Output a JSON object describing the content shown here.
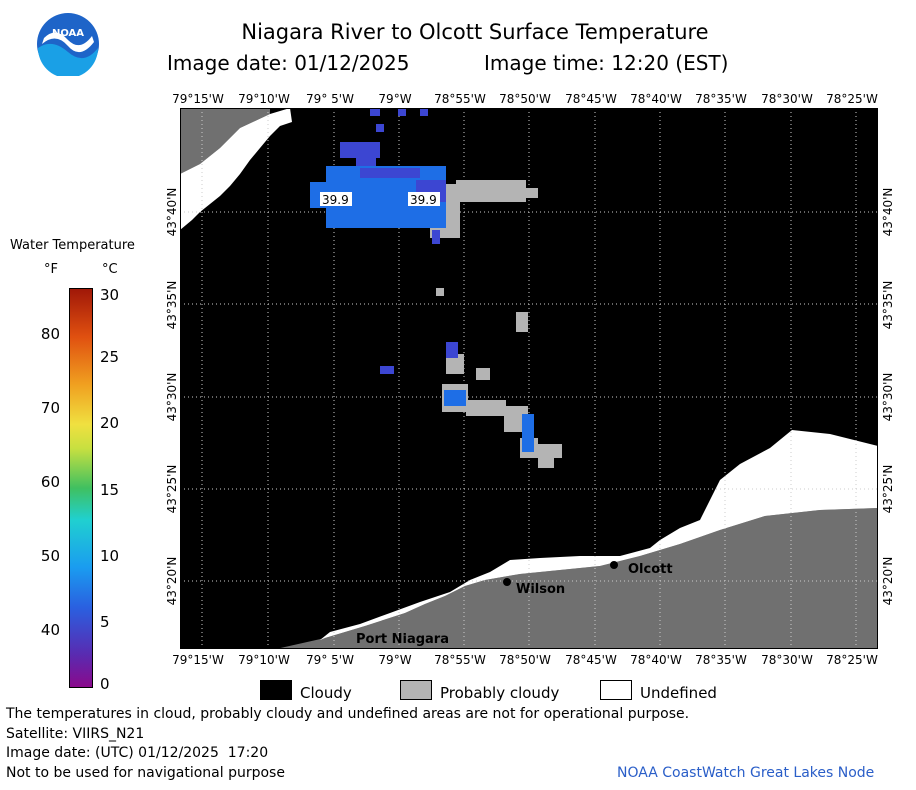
{
  "header": {
    "title": "Niagara River to Olcott Surface Temperature",
    "image_date": "Image date: 01/12/2025",
    "image_time": "Image time: 12:20 (EST)"
  },
  "logo": {
    "text": "NOAA",
    "icon": "noaa-logo-icon",
    "colors": {
      "blue": "#1e64c8",
      "light_blue": "#1aa0e6"
    }
  },
  "map": {
    "longitudes": [
      "79°15'W",
      "79°10'W",
      "79° 5'W",
      "79°W",
      "78°55'W",
      "78°50'W",
      "78°45'W",
      "78°40'W",
      "78°35'W",
      "78°30'W",
      "78°25'W"
    ],
    "latitudes": [
      "43°40'N",
      "43°35'N",
      "43°30'N",
      "43°25'N",
      "43°20'N"
    ],
    "temp_labels": [
      "39.9",
      "39.9"
    ],
    "places": [
      "Olcott",
      "Wilson",
      "Port Niagara"
    ],
    "colors": {
      "cloudy": "#000000",
      "probably_cloudy": "#b4b4b4",
      "undefined": "#ffffff",
      "land": "#707070",
      "water_warm": "#1e6ee6",
      "water_cool": "#3c46d2"
    }
  },
  "color_scale": {
    "title": "Water Temperature",
    "unit_f": "°F",
    "unit_c": "°C",
    "f_ticks": [
      "80",
      "70",
      "60",
      "50",
      "40"
    ],
    "c_ticks": [
      "30",
      "25",
      "20",
      "15",
      "10",
      "5",
      "0"
    ]
  },
  "legend": {
    "cloudy": "Cloudy",
    "probably_cloudy": "Probably cloudy",
    "undefined": "Undefined"
  },
  "footer": {
    "note": "The temperatures in cloud, probably cloudy and undefined areas are not for operational purpose.",
    "satellite": "Satellite: VIIRS_N21",
    "utc_date": "Image date: (UTC) 01/12/2025  17:20",
    "nav_warning": "Not to be used for navigational purpose",
    "credit": "NOAA CoastWatch Great Lakes Node"
  }
}
